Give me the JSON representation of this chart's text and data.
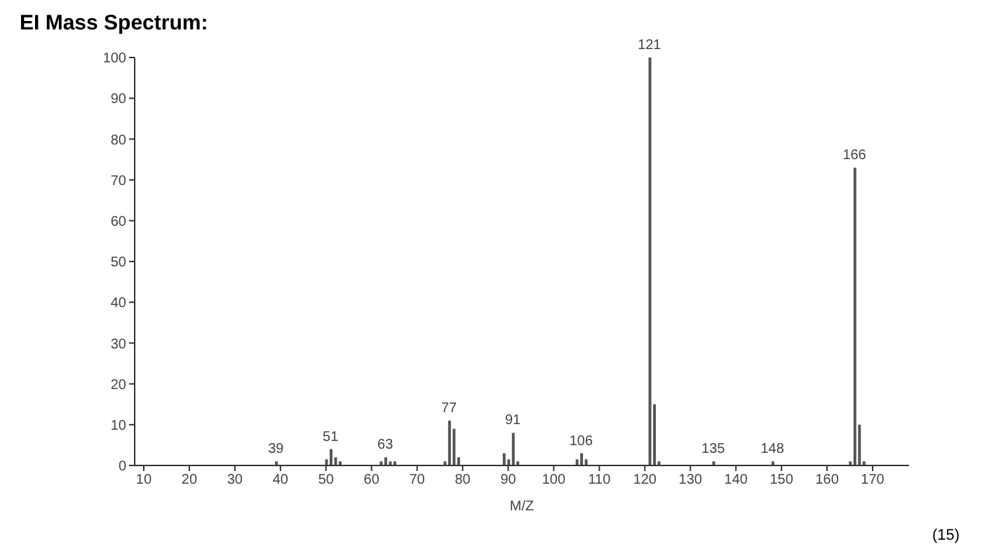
{
  "chart_data": {
    "type": "bar",
    "title": "EI Mass Spectrum:",
    "xlabel": "M/Z",
    "x": [
      39,
      50,
      51,
      52,
      53,
      62,
      63,
      64,
      65,
      76,
      77,
      78,
      79,
      89,
      90,
      91,
      92,
      105,
      106,
      107,
      121,
      122,
      123,
      135,
      148,
      165,
      166,
      167,
      168
    ],
    "series": [
      {
        "color": "#555555",
        "values": [
          1,
          1.5,
          4,
          2,
          1,
          1,
          2,
          1,
          1,
          1,
          11,
          9,
          2,
          3,
          1.5,
          8,
          1,
          1.5,
          3,
          1.5,
          100,
          15,
          1,
          1,
          1,
          1,
          73,
          10,
          1
        ]
      }
    ],
    "xlim": [
      8,
      178
    ],
    "xticks": [
      10,
      20,
      30,
      40,
      50,
      60,
      70,
      80,
      90,
      100,
      110,
      120,
      130,
      140,
      150,
      160,
      170
    ],
    "ylim": [
      0,
      100
    ],
    "yticks": [
      0,
      10,
      20,
      30,
      40,
      50,
      60,
      70,
      80,
      90,
      100
    ],
    "grid": false,
    "legend": false,
    "annotations": [
      {
        "text": "39",
        "x": 39,
        "y": 1
      },
      {
        "text": "51",
        "x": 51,
        "y": 4
      },
      {
        "text": "63",
        "x": 63,
        "y": 2
      },
      {
        "text": "77",
        "x": 77,
        "y": 11
      },
      {
        "text": "91",
        "x": 91,
        "y": 8
      },
      {
        "text": "106",
        "x": 106,
        "y": 3
      },
      {
        "text": "121",
        "x": 121,
        "y": 100
      },
      {
        "text": "135",
        "x": 135,
        "y": 1
      },
      {
        "text": "148",
        "x": 148,
        "y": 1
      },
      {
        "text": "166",
        "x": 166,
        "y": 73
      },
      "(15)"
    ]
  }
}
